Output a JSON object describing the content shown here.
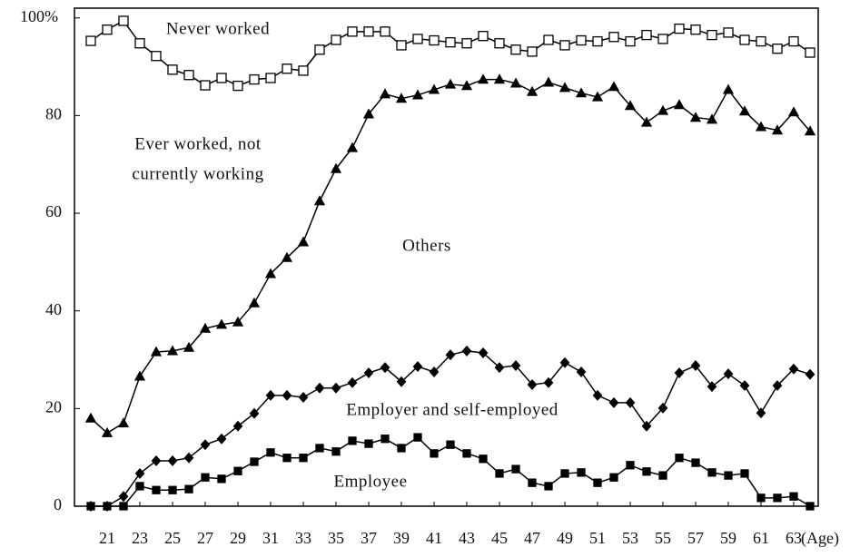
{
  "chart_data": {
    "type": "line",
    "xlabel": "(Age)",
    "x": [
      20,
      21,
      22,
      23,
      24,
      25,
      26,
      27,
      28,
      29,
      30,
      31,
      32,
      33,
      34,
      35,
      36,
      37,
      38,
      39,
      40,
      41,
      42,
      43,
      44,
      45,
      46,
      47,
      48,
      49,
      50,
      51,
      52,
      53,
      54,
      55,
      56,
      57,
      58,
      59,
      60,
      61,
      62,
      63,
      64
    ],
    "xlim": [
      19,
      64.5
    ],
    "xticks": [
      21,
      23,
      25,
      27,
      29,
      31,
      33,
      35,
      37,
      39,
      41,
      43,
      45,
      47,
      49,
      51,
      53,
      55,
      57,
      59,
      61,
      63
    ],
    "ylim": [
      0,
      102
    ],
    "yticks": [
      0,
      20,
      40,
      60,
      80,
      {
        "value": 100,
        "label": "100%"
      }
    ],
    "grid": false,
    "annotations": [
      "Never worked",
      "Ever worked, not",
      "currently working",
      "Others",
      "Employer and self-employed",
      "Employee"
    ],
    "series": [
      {
        "color": "#000000",
        "marker": "open-square",
        "values": [
          95.3,
          97.6,
          99.4,
          94.8,
          92.2,
          89.4,
          88.3,
          86.2,
          87.7,
          86.1,
          87.4,
          87.7,
          89.6,
          89.2,
          93.5,
          95.5,
          97.2,
          97.2,
          97.2,
          94.4,
          95.7,
          95.4,
          95.0,
          94.8,
          96.3,
          94.8,
          93.5,
          93.1,
          95.5,
          94.4,
          95.4,
          95.2,
          96.1,
          95.2,
          96.5,
          95.7,
          97.8,
          97.6,
          96.5,
          97.0,
          95.5,
          95.2,
          93.7,
          95.2,
          92.9
        ]
      },
      {
        "color": "#000000",
        "marker": "triangle",
        "values": [
          18,
          15,
          17,
          26.6,
          31.6,
          31.8,
          32.5,
          36.4,
          37.2,
          37.7,
          41.6,
          47.6,
          50.9,
          54.1,
          62.5,
          69.1,
          73.4,
          80.3,
          84.4,
          83.5,
          84.2,
          85.3,
          86.4,
          86.1,
          87.4,
          87.4,
          86.6,
          84.9,
          86.8,
          85.7,
          84.6,
          83.8,
          85.9,
          82.0,
          78.6,
          81.0,
          82.2,
          79.6,
          79.2,
          85.3,
          80.9,
          77.7,
          77.0,
          80.7,
          76.8
        ]
      },
      {
        "color": "#000000",
        "marker": "diamond",
        "values": [
          0,
          0,
          2.0,
          6.7,
          9.3,
          9.3,
          9.9,
          12.6,
          13.8,
          16.4,
          19.0,
          22.7,
          22.7,
          22.3,
          24.2,
          24.2,
          25.3,
          27.3,
          28.4,
          25.5,
          28.6,
          27.5,
          31.0,
          31.8,
          31.4,
          28.4,
          28.8,
          24.9,
          25.3,
          29.4,
          27.5,
          22.7,
          21.2,
          21.2,
          16.4,
          20.1,
          27.3,
          28.8,
          24.5,
          27.1,
          24.7,
          19.1,
          24.7,
          28.1,
          27.0
        ]
      },
      {
        "color": "#000000",
        "marker": "filled-square",
        "values": [
          0,
          0,
          0,
          4.1,
          3.3,
          3.3,
          3.5,
          5.9,
          5.6,
          7.2,
          9.1,
          11.0,
          9.9,
          9.9,
          11.9,
          11.2,
          13.4,
          12.8,
          13.8,
          11.9,
          14.1,
          10.8,
          12.6,
          10.8,
          9.7,
          6.7,
          7.6,
          4.8,
          4.1,
          6.7,
          6.9,
          4.8,
          5.9,
          8.4,
          7.1,
          6.3,
          9.9,
          8.9,
          6.9,
          6.3,
          6.7,
          1.7,
          1.7,
          2.0,
          0
        ]
      }
    ]
  }
}
